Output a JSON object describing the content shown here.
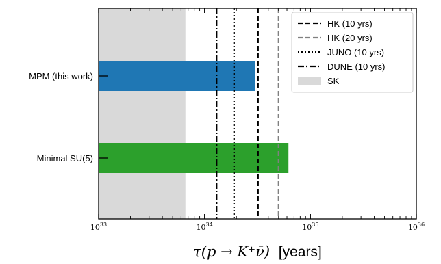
{
  "chart_data": {
    "type": "bar",
    "orientation": "horizontal",
    "categories": [
      "MPM (this work)",
      "Minimal SU(5)"
    ],
    "bars": [
      {
        "category": "MPM (this work)",
        "value": 3e+34,
        "color": "#1f77b4"
      },
      {
        "category": "Minimal SU(5)",
        "value": 6.2e+34,
        "color": "#2ca02c"
      }
    ],
    "xaxis": {
      "label_math": "τ(p → K⁺ν̄)",
      "label_unit": "[years]",
      "scale": "log",
      "xlim": [
        1e+33,
        1e+36
      ],
      "major_ticks": [
        {
          "value": 1e+33,
          "base": "10",
          "exp": "33"
        },
        {
          "value": 1e+34,
          "base": "10",
          "exp": "34"
        },
        {
          "value": 1e+35,
          "base": "10",
          "exp": "35"
        },
        {
          "value": 1e+36,
          "base": "10",
          "exp": "36"
        }
      ]
    },
    "shaded_region": {
      "name": "SK",
      "from": 1e+33,
      "to": 6.6e+33,
      "color": "#d9d9d9"
    },
    "reference_lines": [
      {
        "name": "HK (10 yrs)",
        "value": 3.2e+34,
        "style": "dashed",
        "color": "#000000"
      },
      {
        "name": "HK (20 yrs)",
        "value": 5e+34,
        "style": "dashed",
        "color": "#808080"
      },
      {
        "name": "JUNO (10 yrs)",
        "value": 1.9e+34,
        "style": "dotted",
        "color": "#000000"
      },
      {
        "name": "DUNE (10 yrs)",
        "value": 1.3e+34,
        "style": "dashdot",
        "color": "#000000"
      }
    ],
    "legend": {
      "position": "top-right",
      "entries": [
        {
          "name": "HK (10 yrs)",
          "kind": "line",
          "style": "dashed",
          "color": "#000000"
        },
        {
          "name": "HK (20 yrs)",
          "kind": "line",
          "style": "dashed",
          "color": "#808080"
        },
        {
          "name": "JUNO (10 yrs)",
          "kind": "line",
          "style": "dotted",
          "color": "#000000"
        },
        {
          "name": "DUNE (10 yrs)",
          "kind": "line",
          "style": "dashdot",
          "color": "#000000"
        },
        {
          "name": "SK",
          "kind": "patch",
          "color": "#d9d9d9"
        }
      ]
    },
    "grid": false
  }
}
